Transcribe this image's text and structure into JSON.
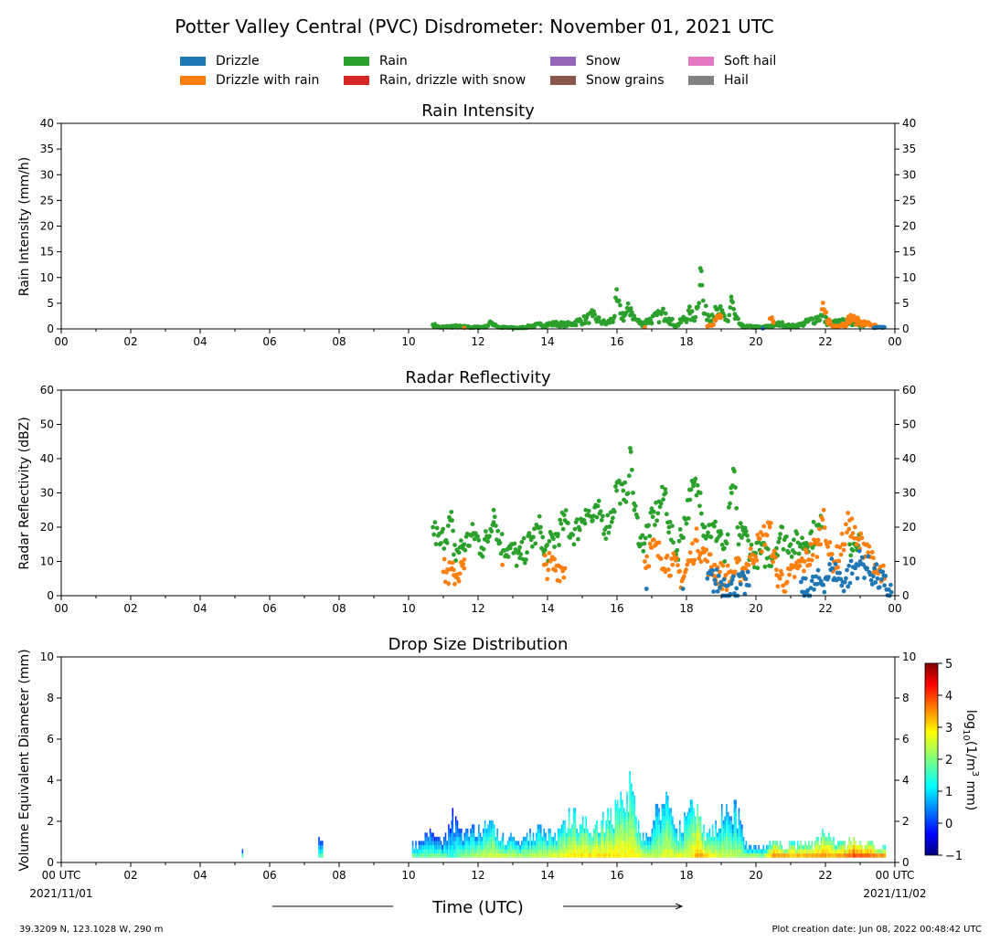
{
  "title": "Potter Valley Central (PVC) Disdrometer: November 01, 2021 UTC",
  "legend": [
    {
      "label": "Drizzle",
      "color": "#1f77b4"
    },
    {
      "label": "Drizzle with rain",
      "color": "#ff7f0e"
    },
    {
      "label": "Rain",
      "color": "#2ca02c"
    },
    {
      "label": "Rain, drizzle with snow",
      "color": "#d62728"
    },
    {
      "label": "Snow",
      "color": "#9467bd"
    },
    {
      "label": "Snow grains",
      "color": "#8c564b"
    },
    {
      "label": "Soft hail",
      "color": "#e377c2"
    },
    {
      "label": "Hail",
      "color": "#7f7f7f"
    }
  ],
  "footer": {
    "xlabel": "Time (UTC)",
    "start_date": "2021/11/01",
    "end_date": "2021/11/02",
    "location": "39.3209 N, 123.1028 W, 290 m",
    "creation": "Plot creation date: Jun 08, 2022 00:48:42 UTC"
  },
  "chart_data": [
    {
      "type": "scatter",
      "title": "Rain Intensity",
      "ylabel": "Rain Intensity (mm/h)",
      "xlabel": "",
      "xlim": [
        0,
        24
      ],
      "ylim": [
        0,
        40
      ],
      "xticks": [
        "00",
        "02",
        "04",
        "06",
        "08",
        "10",
        "12",
        "14",
        "16",
        "18",
        "20",
        "22",
        "00"
      ],
      "yticks": [
        0,
        5,
        10,
        15,
        20,
        25,
        30,
        35,
        40
      ],
      "series": [
        {
          "name": "Rain",
          "color": "#2ca02c",
          "points": [
            [
              10.7,
              0.8
            ],
            [
              10.9,
              0.3
            ],
            [
              11.3,
              0.5
            ],
            [
              11.9,
              0.3
            ],
            [
              12.2,
              0.4
            ],
            [
              12.4,
              1.2
            ],
            [
              12.5,
              0.8
            ],
            [
              12.6,
              0.3
            ],
            [
              13.2,
              0.2
            ],
            [
              13.8,
              0.8
            ],
            [
              14.3,
              1
            ],
            [
              14.5,
              0.8
            ],
            [
              14.7,
              1
            ],
            [
              14.9,
              1.5
            ],
            [
              15.1,
              1.8
            ],
            [
              15.3,
              2.5
            ],
            [
              15.5,
              1.5
            ],
            [
              15.7,
              1
            ],
            [
              15.9,
              2
            ],
            [
              16.0,
              5.5
            ],
            [
              16.1,
              3
            ],
            [
              16.2,
              2.5
            ],
            [
              16.4,
              4
            ],
            [
              16.5,
              2
            ],
            [
              16.7,
              1
            ],
            [
              17.4,
              3
            ],
            [
              17.5,
              2
            ],
            [
              17.7,
              0.5
            ],
            [
              18.1,
              3
            ],
            [
              18.2,
              2
            ],
            [
              18.3,
              4
            ],
            [
              18.4,
              11.8
            ],
            [
              18.45,
              8.5
            ],
            [
              18.5,
              3
            ],
            [
              19.0,
              3
            ],
            [
              19.2,
              1.5
            ],
            [
              19.3,
              5.5
            ],
            [
              19.4,
              2
            ],
            [
              19.6,
              0.5
            ],
            [
              20.2,
              0.3
            ],
            [
              20.7,
              1
            ],
            [
              21.0,
              0.5
            ],
            [
              21.3,
              0.8
            ],
            [
              21.9,
              2.5
            ],
            [
              22.1,
              1
            ],
            [
              22.7,
              1.5
            ],
            [
              23.1,
              0.8
            ]
          ]
        },
        {
          "name": "Drizzle with rain",
          "color": "#ff7f0e",
          "points": [
            [
              11.6,
              0.2
            ],
            [
              16.8,
              0.3
            ],
            [
              18.6,
              0.5
            ],
            [
              19.0,
              2.5
            ],
            [
              20.4,
              2
            ],
            [
              20.5,
              1.2
            ],
            [
              21.9,
              3.8
            ],
            [
              22.2,
              0.5
            ],
            [
              22.6,
              1
            ],
            [
              22.7,
              2.2
            ],
            [
              22.9,
              1.5
            ],
            [
              23.2,
              1
            ],
            [
              23.5,
              0.4
            ]
          ]
        },
        {
          "name": "Drizzle",
          "color": "#1f77b4",
          "points": [
            [
              20.2,
              0.1
            ],
            [
              23.4,
              0.2
            ],
            [
              23.7,
              0.3
            ]
          ]
        }
      ]
    },
    {
      "type": "scatter",
      "title": "Radar Reflectivity",
      "ylabel": "Radar Reflectivity (dBZ)",
      "xlabel": "",
      "xlim": [
        0,
        24
      ],
      "ylim": [
        0,
        60
      ],
      "xticks": [
        "00",
        "02",
        "04",
        "06",
        "08",
        "10",
        "12",
        "14",
        "16",
        "18",
        "20",
        "22",
        "00"
      ],
      "yticks": [
        0,
        10,
        20,
        30,
        40,
        50,
        60
      ],
      "series": [
        {
          "name": "Rain",
          "color": "#2ca02c",
          "points": [
            [
              10.7,
              20
            ],
            [
              10.9,
              15
            ],
            [
              11.25,
              22
            ],
            [
              11.3,
              12
            ],
            [
              11.9,
              18
            ],
            [
              12.1,
              14
            ],
            [
              12.3,
              17
            ],
            [
              12.45,
              25
            ],
            [
              12.6,
              16
            ],
            [
              13.2,
              11
            ],
            [
              13.8,
              20
            ],
            [
              13.9,
              12
            ],
            [
              14.3,
              18
            ],
            [
              14.5,
              22
            ],
            [
              14.7,
              18
            ],
            [
              14.9,
              20
            ],
            [
              15.1,
              25
            ],
            [
              15.3,
              22
            ],
            [
              15.5,
              24
            ],
            [
              15.7,
              20
            ],
            [
              15.9,
              25
            ],
            [
              16.0,
              33
            ],
            [
              16.2,
              28
            ],
            [
              16.35,
              35
            ],
            [
              16.4,
              42
            ],
            [
              16.5,
              25
            ],
            [
              16.7,
              15
            ],
            [
              17.4,
              30
            ],
            [
              17.5,
              20
            ],
            [
              17.7,
              12
            ],
            [
              18.1,
              28
            ],
            [
              18.2,
              32
            ],
            [
              18.4,
              30
            ],
            [
              18.5,
              20
            ],
            [
              19.0,
              18
            ],
            [
              19.1,
              10
            ],
            [
              19.3,
              30
            ],
            [
              19.35,
              37
            ],
            [
              19.5,
              15
            ],
            [
              19.6,
              20
            ],
            [
              19.9,
              12
            ],
            [
              20.5,
              12
            ],
            [
              20.7,
              18
            ],
            [
              21.0,
              15
            ],
            [
              21.3,
              15
            ],
            [
              21.9,
              20
            ],
            [
              22.7,
              15
            ],
            [
              23.0,
              18
            ]
          ]
        },
        {
          "name": "Drizzle with rain",
          "color": "#ff7f0e",
          "points": [
            [
              11.0,
              7
            ],
            [
              11.3,
              6
            ],
            [
              11.6,
              8
            ],
            [
              12.7,
              9
            ],
            [
              13.9,
              9
            ],
            [
              14.5,
              8
            ],
            [
              16.8,
              10
            ],
            [
              17.0,
              14
            ],
            [
              17.6,
              9
            ],
            [
              17.9,
              5
            ],
            [
              18.3,
              16
            ],
            [
              18.6,
              10
            ],
            [
              19.1,
              5
            ],
            [
              19.4,
              7
            ],
            [
              19.7,
              8
            ],
            [
              19.9,
              12
            ],
            [
              20.4,
              20
            ],
            [
              20.5,
              12
            ],
            [
              20.6,
              6
            ],
            [
              20.9,
              4
            ],
            [
              21.2,
              8
            ],
            [
              21.4,
              10
            ],
            [
              21.8,
              15
            ],
            [
              21.95,
              25
            ],
            [
              22.1,
              12
            ],
            [
              22.3,
              10
            ],
            [
              22.5,
              15
            ],
            [
              22.7,
              22
            ],
            [
              22.9,
              15
            ],
            [
              23.2,
              15
            ],
            [
              23.4,
              7
            ],
            [
              23.7,
              5
            ]
          ]
        },
        {
          "name": "Drizzle",
          "color": "#1f77b4",
          "points": [
            [
              16.85,
              2
            ],
            [
              17.9,
              2
            ],
            [
              18.6,
              5
            ],
            [
              19.2,
              3
            ],
            [
              19.8,
              3
            ],
            [
              21.3,
              4
            ],
            [
              21.4,
              1
            ],
            [
              22.0,
              5
            ],
            [
              22.2,
              8
            ],
            [
              22.5,
              4
            ],
            [
              23.0,
              10
            ],
            [
              23.2,
              8
            ],
            [
              23.5,
              5
            ],
            [
              23.7,
              3
            ],
            [
              23.9,
              1
            ]
          ]
        }
      ]
    },
    {
      "type": "heatmap",
      "title": "Drop Size Distribution",
      "ylabel": "Volume Equivalent Diameter (mm)",
      "xlim": [
        0,
        24
      ],
      "ylim": [
        0,
        10
      ],
      "xticks": [
        "00 UTC",
        "02",
        "04",
        "06",
        "08",
        "10",
        "12",
        "14",
        "16",
        "18",
        "20",
        "22",
        "00 UTC"
      ],
      "yticks": [
        0,
        2,
        4,
        6,
        8,
        10
      ],
      "colorbar": {
        "label_prefix": "log",
        "label_sub": "10",
        "label_body": "(1/m",
        "label_sup": "3",
        "label_end": " mm)",
        "range": [
          -1,
          5
        ],
        "ticks": [
          -1,
          0,
          1,
          2,
          3,
          4,
          5
        ],
        "cmap": "jet"
      },
      "columns_hour_maxdiam_peaklog": [
        [
          5.2,
          0.5,
          1.5
        ],
        [
          7.4,
          1.2,
          1.5
        ],
        [
          7.5,
          0.9,
          1.8
        ],
        [
          10.1,
          1,
          1.8
        ],
        [
          10.6,
          1.5,
          1.8
        ],
        [
          11.0,
          1.2,
          1.8
        ],
        [
          11.25,
          2.5,
          1.5
        ],
        [
          11.5,
          1.5,
          2
        ],
        [
          12.0,
          1.8,
          2.2
        ],
        [
          12.4,
          2,
          2.5
        ],
        [
          12.7,
          1.3,
          2.3
        ],
        [
          13.3,
          1.2,
          2.2
        ],
        [
          13.7,
          1.8,
          2.3
        ],
        [
          14.3,
          1.6,
          2.5
        ],
        [
          14.6,
          2.5,
          2.8
        ],
        [
          15.0,
          2.2,
          2.9
        ],
        [
          15.4,
          2.0,
          2.9
        ],
        [
          15.8,
          2.5,
          2.9
        ],
        [
          16.0,
          3.0,
          2.9
        ],
        [
          16.35,
          4.3,
          2.8
        ],
        [
          16.6,
          2.0,
          2.7
        ],
        [
          16.9,
          1.2,
          2.3
        ],
        [
          17.1,
          2.8,
          2.3
        ],
        [
          17.4,
          3.3,
          2.6
        ],
        [
          17.7,
          1.5,
          2.5
        ],
        [
          18.1,
          3,
          2.6
        ],
        [
          18.3,
          2.8,
          3.3
        ],
        [
          18.6,
          1.3,
          2.8
        ],
        [
          19.0,
          2.7,
          2.4
        ],
        [
          19.4,
          3.0,
          2.3
        ],
        [
          19.7,
          1,
          2.1
        ],
        [
          20.2,
          0.8,
          2.0
        ],
        [
          20.5,
          1,
          3.5
        ],
        [
          21.0,
          1,
          3.0
        ],
        [
          21.5,
          1,
          3.2
        ],
        [
          21.9,
          1.5,
          3.3
        ],
        [
          22.4,
          0.9,
          3.2
        ],
        [
          22.8,
          1.2,
          3.8
        ],
        [
          23.2,
          0.9,
          3.7
        ],
        [
          23.7,
          0.7,
          3.2
        ]
      ]
    }
  ]
}
